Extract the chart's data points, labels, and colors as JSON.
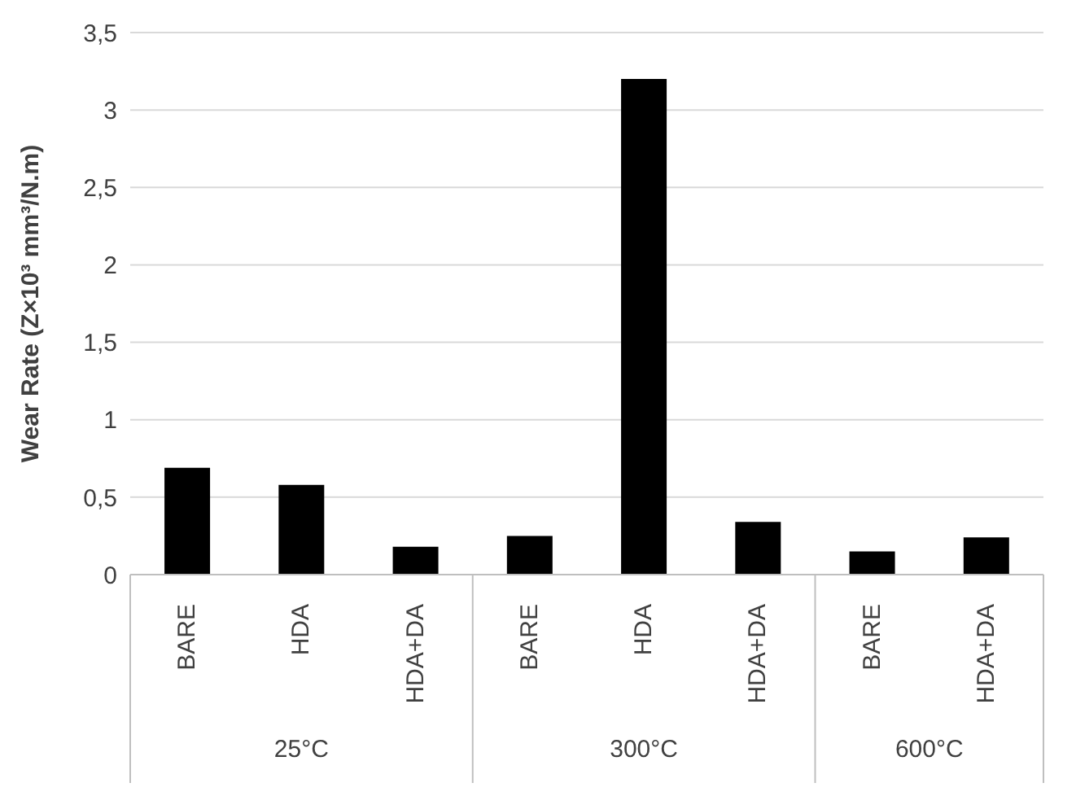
{
  "chart_data": {
    "type": "bar",
    "ylabel": "Wear Rate (Z×10³ mm³/N.m)",
    "categories": [
      "BARE",
      "HDA",
      "HDA+DA",
      "BARE",
      "HDA",
      "HDA+DA",
      "BARE",
      "HDA+DA"
    ],
    "values": [
      0.69,
      0.58,
      0.18,
      0.25,
      3.2,
      0.34,
      0.15,
      0.24
    ],
    "color": "#000000",
    "ylim": [
      0,
      3.5
    ],
    "yticks": [
      0,
      {
        "value": 0.5,
        "label": "0,5"
      },
      1,
      {
        "value": 1.5,
        "label": "1,5"
      },
      2,
      {
        "value": 2.5,
        "label": "2,5"
      },
      3,
      {
        "value": 3.5,
        "label": "3,5"
      }
    ],
    "grid": "y",
    "annotations": [
      "25°C",
      "300°C",
      "600°C"
    ]
  }
}
